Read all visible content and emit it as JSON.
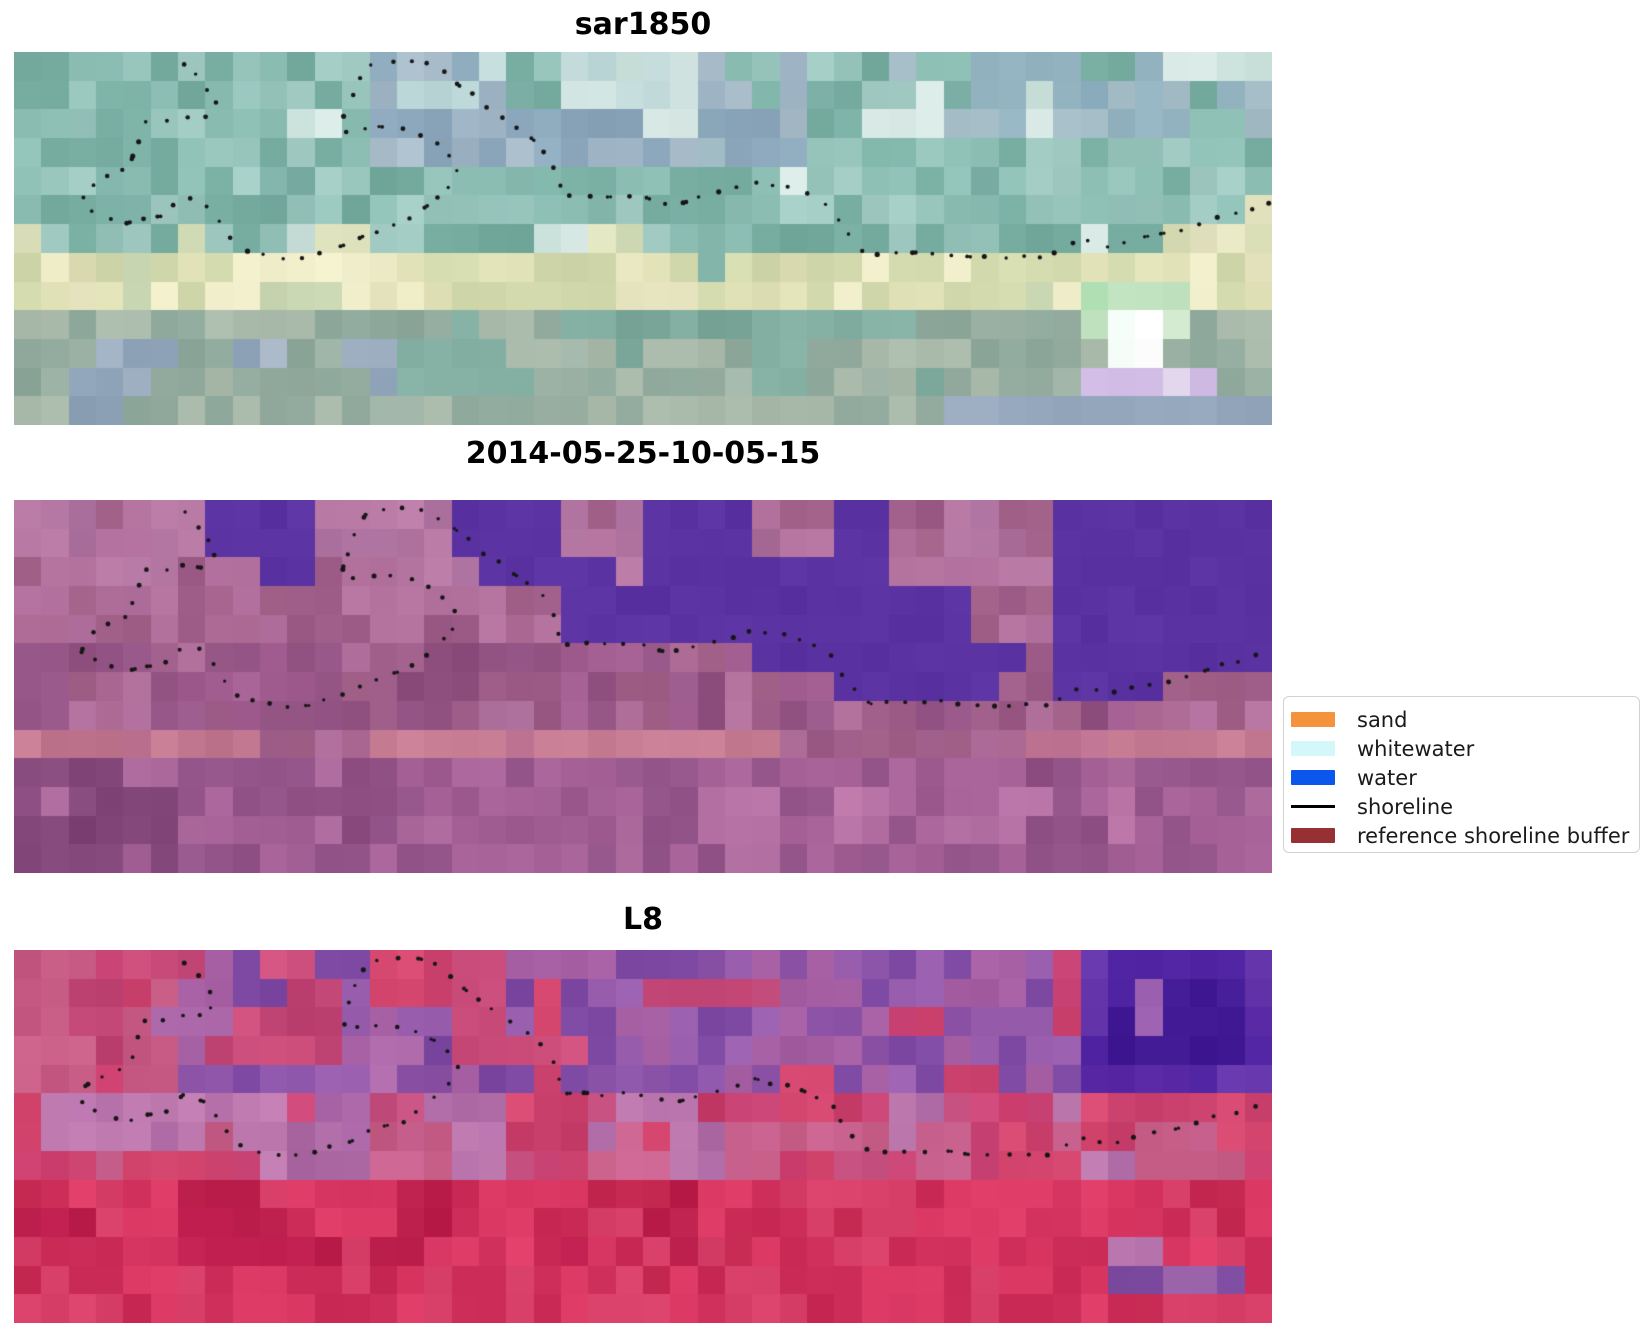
{
  "figure": {
    "background": "#ffffff"
  },
  "panels": [
    {
      "id": "sar1850",
      "title": "sar1850",
      "seed": 11,
      "grid": {
        "cols": 46,
        "rows": 13
      },
      "zones": [
        {
          "x": [
            0,
            100
          ],
          "y": [
            0,
            100
          ],
          "cover": 1,
          "colors": [
            "#7fb4a9",
            "#8abcb2",
            "#96c4bb",
            "#74ab9e",
            "#a2cbc3",
            "#8fc0b6",
            "#7db0a6"
          ]
        },
        {
          "x": [
            28,
            62
          ],
          "y": [
            0,
            32
          ],
          "cover": 0.72,
          "colors": [
            "#9db3c3",
            "#8ba6bb",
            "#a9bcca",
            "#90aebf",
            "#9cb6c0"
          ]
        },
        {
          "x": [
            30,
            55
          ],
          "y": [
            0,
            15
          ],
          "cover": 0.5,
          "colors": [
            "#c5dcdc",
            "#d3e5e3",
            "#b8d4d4"
          ]
        },
        {
          "x": [
            70,
            100
          ],
          "y": [
            0,
            25
          ],
          "cover": 0.55,
          "colors": [
            "#93b3c0",
            "#a4bcc6",
            "#86a8b8"
          ]
        },
        {
          "x": [
            0,
            100
          ],
          "y": [
            0,
            100
          ],
          "cover": 0.16,
          "colors": [
            "#c8dfda",
            "#d8e9e5"
          ]
        },
        {
          "x": [
            92,
            100
          ],
          "y": [
            33,
            55
          ],
          "cover": 0.55,
          "colors": [
            "#d8ddb5",
            "#e4e4c0"
          ]
        },
        {
          "x": [
            0,
            60
          ],
          "y": [
            47,
            57
          ],
          "cover": 0.4,
          "colors": [
            "#dde2bd",
            "#cfdab4"
          ]
        },
        {
          "x": [
            0,
            100
          ],
          "y": [
            54,
            72
          ],
          "cover": 0.82,
          "colors": [
            "#e9e7c2",
            "#dfe0b5",
            "#d2d9ad",
            "#f1eecb",
            "#c9d6b2"
          ]
        },
        {
          "x": [
            0,
            100
          ],
          "y": [
            72,
            100
          ],
          "cover": 1,
          "colors": [
            "#9bb1a4",
            "#8da89b",
            "#aabbab",
            "#93ab9e",
            "#a3b7ab"
          ]
        },
        {
          "x": [
            5,
            30
          ],
          "y": [
            76,
            100
          ],
          "cover": 0.5,
          "colors": [
            "#9dafc0",
            "#8fa3b8",
            "#aab8c8"
          ]
        },
        {
          "x": [
            30,
            75
          ],
          "y": [
            72,
            92
          ],
          "cover": 0.45,
          "colors": [
            "#84b0a4",
            "#79a699"
          ]
        },
        {
          "x": [
            85,
            94
          ],
          "y": [
            60,
            78
          ],
          "cover": 0.85,
          "colors": [
            "#c2e4c0",
            "#a8d8ac",
            "#d8eed4"
          ]
        },
        {
          "x": [
            86.5,
            91.5
          ],
          "y": [
            69,
            81
          ],
          "cover": 1,
          "colors": [
            "#ffffff",
            "#f2faf6",
            "#e8f4ee"
          ]
        },
        {
          "x": [
            84,
            95
          ],
          "y": [
            81,
            93
          ],
          "cover": 0.75,
          "colors": [
            "#d9c8e8",
            "#cdb9e2",
            "#e4d8ee"
          ]
        },
        {
          "x": [
            75,
            100
          ],
          "y": [
            90,
            100
          ],
          "cover": 0.65,
          "colors": [
            "#9fb0c4",
            "#93a6bc"
          ]
        }
      ]
    },
    {
      "id": "2014-05-25-10-05-15",
      "title": "2014-05-25-10-05-15",
      "seed": 47,
      "grid": {
        "cols": 46,
        "rows": 13
      },
      "zones": [
        {
          "x": [
            0,
            100
          ],
          "y": [
            0,
            100
          ],
          "cover": 1,
          "colors": [
            "#ab6993",
            "#b06f9c",
            "#a26189",
            "#b4739f",
            "#9d5c87",
            "#a96c98"
          ]
        },
        {
          "x": [
            0,
            100
          ],
          "y": [
            0,
            22
          ],
          "cover": 0.5,
          "colors": [
            "#b577a3",
            "#ba7ba6",
            "#ae72a0"
          ]
        },
        {
          "x": [
            0,
            100
          ],
          "y": [
            42,
            62
          ],
          "cover": 0.45,
          "colors": [
            "#99588a",
            "#8f5080",
            "#a35f92"
          ]
        },
        {
          "x": [
            0,
            100
          ],
          "y": [
            60,
            68
          ],
          "cover": 0.55,
          "colors": [
            "#c1768f",
            "#c77d94",
            "#bc7190"
          ]
        },
        {
          "x": [
            0,
            100
          ],
          "y": [
            68,
            100
          ],
          "cover": 1,
          "colors": [
            "#9e5c90",
            "#a86399",
            "#93548a",
            "#b06da0",
            "#8d4d80"
          ]
        },
        {
          "x": [
            0,
            12
          ],
          "y": [
            70,
            100
          ],
          "cover": 0.5,
          "colors": [
            "#86497c",
            "#7e4374"
          ]
        },
        {
          "x": [
            55,
            90
          ],
          "y": [
            78,
            96
          ],
          "cover": 0.35,
          "colors": [
            "#b873a6",
            "#bd78a9"
          ]
        }
      ],
      "water": {
        "color": "#5a32a2",
        "rows": [
          {
            "row": 0,
            "ranges": [
              [
                7,
                10
              ],
              [
                16,
                19
              ],
              [
                23,
                26
              ],
              [
                30,
                31
              ],
              [
                38,
                45
              ]
            ]
          },
          {
            "row": 1,
            "ranges": [
              [
                7,
                10
              ],
              [
                16,
                19
              ],
              [
                23,
                26
              ],
              [
                30,
                31
              ],
              [
                38,
                45
              ]
            ]
          },
          {
            "row": 2,
            "ranges": [
              [
                9,
                10
              ],
              [
                17,
                21
              ],
              [
                23,
                31
              ],
              [
                38,
                45
              ]
            ]
          },
          {
            "row": 3,
            "ranges": [
              [
                20,
                34
              ],
              [
                38,
                45
              ]
            ]
          },
          {
            "row": 4,
            "ranges": [
              [
                20,
                34
              ],
              [
                38,
                45
              ]
            ]
          },
          {
            "row": 5,
            "ranges": [
              [
                27,
                36
              ],
              [
                38,
                45
              ]
            ]
          },
          {
            "row": 6,
            "ranges": [
              [
                30,
                35
              ],
              [
                38,
                41
              ]
            ]
          }
        ]
      }
    },
    {
      "id": "L8",
      "title": "L8",
      "seed": 83,
      "grid": {
        "cols": 46,
        "rows": 13
      },
      "zones": [
        {
          "x": [
            0,
            100
          ],
          "y": [
            0,
            100
          ],
          "cover": 1,
          "colors": [
            "#cf4170",
            "#d6486f",
            "#c73e6b",
            "#cb4476",
            "#c54f7f"
          ]
        },
        {
          "x": [
            12,
            100
          ],
          "y": [
            0,
            38
          ],
          "cover": 0.72,
          "colors": [
            "#8d55aa",
            "#7c48a2",
            "#9a5fae",
            "#a75fa4",
            "#8b51a4"
          ]
        },
        {
          "x": [
            0,
            60
          ],
          "y": [
            0,
            30
          ],
          "cover": 0.45,
          "colors": [
            "#c84a78",
            "#d0517e",
            "#bf4474"
          ]
        },
        {
          "x": [
            0,
            12
          ],
          "y": [
            0,
            35
          ],
          "cover": 0.6,
          "colors": [
            "#ca6088",
            "#c35781"
          ]
        },
        {
          "x": [
            84,
            100
          ],
          "y": [
            0,
            35
          ],
          "cover": 0.85,
          "colors": [
            "#5a2aa6",
            "#4e22a0",
            "#6535ac"
          ]
        },
        {
          "x": [
            88,
            98
          ],
          "y": [
            8,
            30
          ],
          "cover": 0.8,
          "colors": [
            "#4a1e9e",
            "#431b96"
          ]
        },
        {
          "x": [
            5,
            35
          ],
          "y": [
            18,
            55
          ],
          "cover": 0.4,
          "colors": [
            "#b06bac",
            "#a864a6"
          ]
        },
        {
          "x": [
            0,
            100
          ],
          "y": [
            38,
            58
          ],
          "cover": 0.5,
          "colors": [
            "#b873ac",
            "#c07cb0",
            "#ad6aa4"
          ]
        },
        {
          "x": [
            0,
            100
          ],
          "y": [
            44,
            62
          ],
          "cover": 0.45,
          "colors": [
            "#c45c86",
            "#cb6490"
          ]
        },
        {
          "x": [
            0,
            100
          ],
          "y": [
            62,
            100
          ],
          "cover": 1,
          "colors": [
            "#d5335f",
            "#dd3b65",
            "#cb2b57",
            "#d84069",
            "#c62a52"
          ]
        },
        {
          "x": [
            0,
            55
          ],
          "y": [
            64,
            86
          ],
          "cover": 0.4,
          "colors": [
            "#c22050",
            "#bb1e4a"
          ]
        },
        {
          "x": [
            82,
            98
          ],
          "y": [
            76,
            86
          ],
          "cover": 0.4,
          "colors": [
            "#b470a8"
          ]
        },
        {
          "x": [
            87,
            97
          ],
          "y": [
            84,
            96
          ],
          "cover": 0.85,
          "colors": [
            "#8b55a0",
            "#7b4a9e",
            "#9a62a8"
          ]
        }
      ]
    }
  ],
  "shoreline": {
    "color": "#161616",
    "dot_radius": 2.0,
    "spacing_pct": 1.45,
    "points_pct": [
      [
        13.5,
        3.2
      ],
      [
        14.9,
        8.0
      ],
      [
        16.1,
        13.9
      ],
      [
        15.1,
        18.0
      ],
      [
        13.6,
        17.2
      ],
      [
        12.0,
        18.8
      ],
      [
        10.4,
        18.8
      ],
      [
        9.7,
        24.7
      ],
      [
        9.1,
        31.1
      ],
      [
        7.2,
        33.5
      ],
      [
        5.7,
        36.7
      ],
      [
        5.3,
        41.3
      ],
      [
        7.2,
        44.0
      ],
      [
        8.7,
        46.1
      ],
      [
        10.3,
        44.5
      ],
      [
        11.9,
        44.0
      ],
      [
        13.5,
        38.9
      ],
      [
        15.3,
        40.8
      ],
      [
        16.5,
        46.6
      ],
      [
        17.6,
        52.3
      ],
      [
        20.0,
        54.4
      ],
      [
        21.5,
        55.2
      ],
      [
        23.1,
        55.2
      ],
      [
        24.6,
        53.6
      ],
      [
        26.4,
        51.7
      ],
      [
        27.9,
        49.3
      ],
      [
        29.3,
        47.2
      ],
      [
        30.8,
        46.1
      ],
      [
        32.8,
        41.6
      ],
      [
        34.1,
        37.0
      ],
      [
        34.8,
        35.7
      ],
      [
        35.3,
        30.3
      ],
      [
        34.3,
        26.5
      ],
      [
        33.5,
        24.1
      ],
      [
        32.5,
        22.8
      ],
      [
        30.8,
        20.4
      ],
      [
        29.3,
        20.1
      ],
      [
        26.2,
        21.2
      ],
      [
        26.2,
        18.8
      ],
      [
        26.3,
        16.6
      ],
      [
        26.7,
        13.4
      ],
      [
        27.3,
        8.0
      ],
      [
        27.9,
        4.8
      ],
      [
        28.5,
        3.2
      ],
      [
        29.8,
        2.6
      ],
      [
        31.5,
        2.2
      ],
      [
        33.2,
        3.4
      ],
      [
        34.6,
        6.5
      ],
      [
        35.9,
        10.2
      ],
      [
        37.2,
        13.9
      ],
      [
        38.8,
        17.5
      ],
      [
        39.4,
        19.0
      ],
      [
        40.5,
        21.3
      ],
      [
        41.8,
        24.9
      ],
      [
        42.8,
        30.0
      ],
      [
        43.6,
        38.6
      ],
      [
        45.2,
        38.3
      ],
      [
        46.7,
        38.9
      ],
      [
        48.3,
        38.6
      ],
      [
        49.8,
        38.6
      ],
      [
        50.7,
        39.7
      ],
      [
        52.4,
        40.8
      ],
      [
        54.0,
        39.4
      ],
      [
        55.6,
        38.3
      ],
      [
        57.2,
        36.7
      ],
      [
        58.7,
        34.6
      ],
      [
        60.3,
        35.9
      ],
      [
        61.9,
        36.5
      ],
      [
        63.4,
        38.6
      ],
      [
        65.0,
        41.8
      ],
      [
        65.8,
        46.9
      ],
      [
        66.6,
        50.1
      ],
      [
        67.0,
        52.3
      ],
      [
        68.1,
        54.4
      ],
      [
        69.7,
        54.2
      ],
      [
        71.5,
        53.9
      ],
      [
        73.1,
        53.9
      ],
      [
        74.6,
        54.2
      ],
      [
        76.2,
        55.0
      ],
      [
        77.6,
        55.2
      ],
      [
        79.3,
        55.0
      ],
      [
        80.9,
        55.0
      ],
      [
        82.4,
        55.0
      ],
      [
        83.6,
        52.3
      ],
      [
        84.2,
        51.2
      ],
      [
        85.5,
        50.4
      ],
      [
        87.0,
        52.3
      ],
      [
        88.8,
        50.4
      ],
      [
        90.5,
        49.3
      ],
      [
        91.9,
        48.5
      ],
      [
        93.5,
        46.9
      ],
      [
        95.1,
        44.8
      ],
      [
        96.7,
        44.0
      ],
      [
        98.3,
        42.1
      ],
      [
        99.7,
        40.8
      ]
    ]
  },
  "legend": {
    "items": [
      {
        "label": "sand",
        "marker": "patch",
        "color": "#f5923e"
      },
      {
        "label": "whitewater",
        "marker": "patch",
        "color": "#d4f7f9"
      },
      {
        "label": "water",
        "marker": "patch",
        "color": "#0b56ec"
      },
      {
        "label": "shoreline",
        "marker": "line",
        "color": "#000000"
      },
      {
        "label": "reference shoreline buffer",
        "marker": "patch",
        "color": "#963034"
      }
    ]
  },
  "chart_data": [
    {
      "type": "heatmap",
      "title": "sar1850",
      "content": "pixelated SAR/optical composite in teal-green tones with pale cream band across lower middle, bright white-green spot lower right, dotted reference shoreline overlay"
    },
    {
      "type": "heatmap",
      "title": "2014-05-25-10-05-15",
      "content": "pixelated false-color scene in rose-mauve tones; classified water pixels shown as solid indigo-purple blocks along the top and upper right; dotted reference shoreline overlay"
    },
    {
      "type": "heatmap",
      "title": "L8",
      "content": "pixelated Landsat-8 false-color scene in crimson-red tones with purple upper band, dark indigo block upper right, small purple patch lower right; dotted reference shoreline overlay"
    }
  ]
}
